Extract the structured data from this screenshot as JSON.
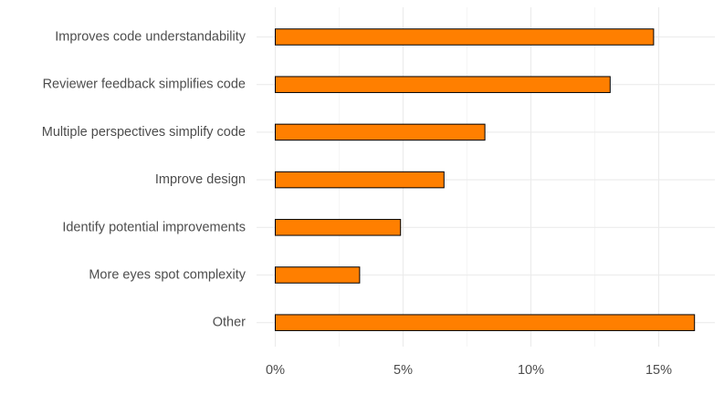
{
  "chart_data": {
    "type": "bar",
    "orientation": "horizontal",
    "title": "",
    "xlabel": "",
    "ylabel": "",
    "categories": [
      "Improves code understandability",
      "Reviewer feedback simplifies code",
      "Multiple perspectives simplify code",
      "Improve design",
      "Identify potential improvements",
      "More eyes spot complexity",
      "Other"
    ],
    "values": [
      14.8,
      13.1,
      8.2,
      6.6,
      4.9,
      3.3,
      16.4
    ],
    "value_unit": "%",
    "xlim": [
      0,
      17
    ],
    "xticks": [
      0,
      5,
      10,
      15
    ],
    "xtick_labels": [
      "0%",
      "5%",
      "10%",
      "15%"
    ],
    "grid": true,
    "bar_color": "#ff7f00",
    "bar_edge_color": "#000000",
    "grid_color": "#ebebeb",
    "text_color": "#4d4d4d"
  }
}
